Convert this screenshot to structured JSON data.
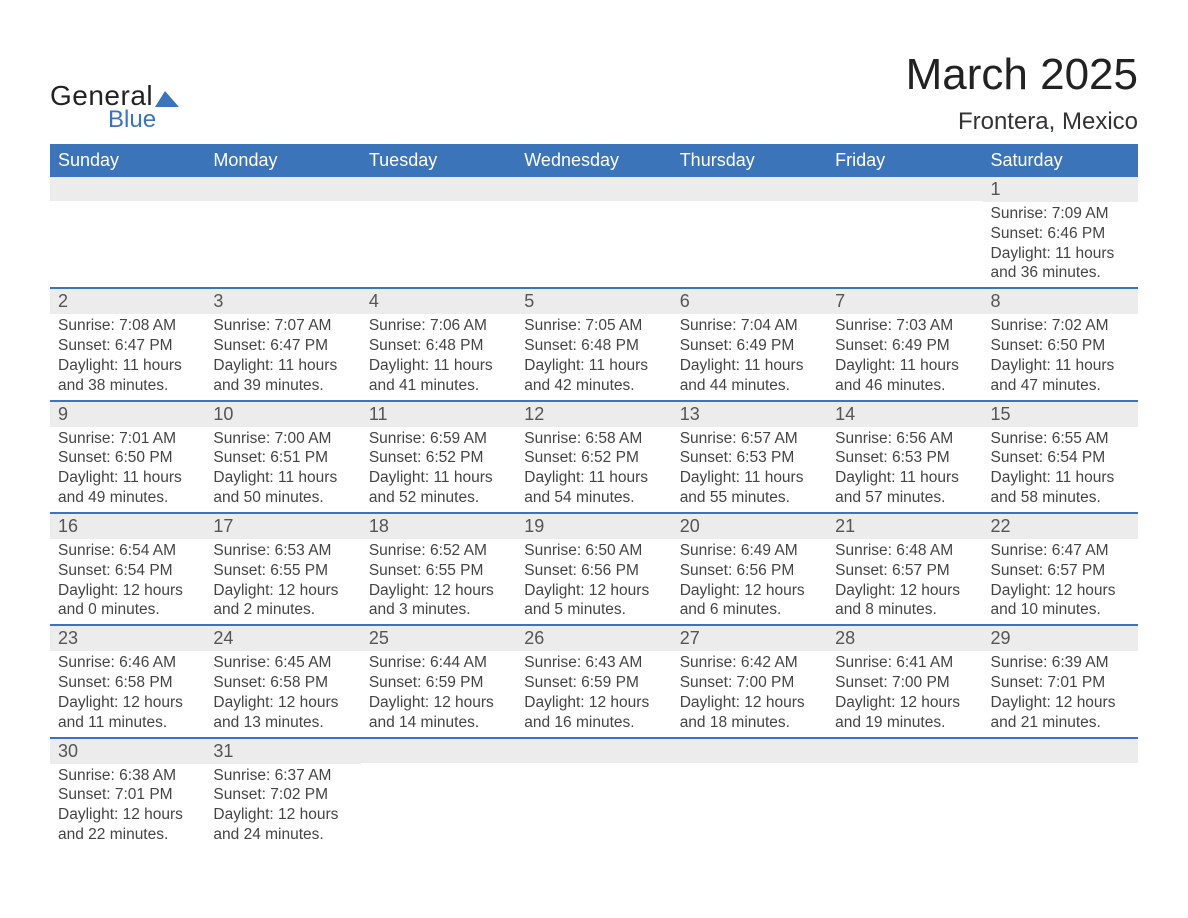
{
  "brand": {
    "line1": "General",
    "line2": "Blue",
    "accent_color": "#3b74b8"
  },
  "title": "March 2025",
  "location": "Frontera, Mexico",
  "header_bg": "#3b74b8",
  "daynum_bg": "#ececec",
  "border_color": "#3b74b8",
  "day_names": [
    "Sunday",
    "Monday",
    "Tuesday",
    "Wednesday",
    "Thursday",
    "Friday",
    "Saturday"
  ],
  "weeks": [
    [
      {
        "day": "",
        "sunrise": "",
        "sunset": "",
        "daylight1": "",
        "daylight2": ""
      },
      {
        "day": "",
        "sunrise": "",
        "sunset": "",
        "daylight1": "",
        "daylight2": ""
      },
      {
        "day": "",
        "sunrise": "",
        "sunset": "",
        "daylight1": "",
        "daylight2": ""
      },
      {
        "day": "",
        "sunrise": "",
        "sunset": "",
        "daylight1": "",
        "daylight2": ""
      },
      {
        "day": "",
        "sunrise": "",
        "sunset": "",
        "daylight1": "",
        "daylight2": ""
      },
      {
        "day": "",
        "sunrise": "",
        "sunset": "",
        "daylight1": "",
        "daylight2": ""
      },
      {
        "day": "1",
        "sunrise": "Sunrise: 7:09 AM",
        "sunset": "Sunset: 6:46 PM",
        "daylight1": "Daylight: 11 hours",
        "daylight2": "and 36 minutes."
      }
    ],
    [
      {
        "day": "2",
        "sunrise": "Sunrise: 7:08 AM",
        "sunset": "Sunset: 6:47 PM",
        "daylight1": "Daylight: 11 hours",
        "daylight2": "and 38 minutes."
      },
      {
        "day": "3",
        "sunrise": "Sunrise: 7:07 AM",
        "sunset": "Sunset: 6:47 PM",
        "daylight1": "Daylight: 11 hours",
        "daylight2": "and 39 minutes."
      },
      {
        "day": "4",
        "sunrise": "Sunrise: 7:06 AM",
        "sunset": "Sunset: 6:48 PM",
        "daylight1": "Daylight: 11 hours",
        "daylight2": "and 41 minutes."
      },
      {
        "day": "5",
        "sunrise": "Sunrise: 7:05 AM",
        "sunset": "Sunset: 6:48 PM",
        "daylight1": "Daylight: 11 hours",
        "daylight2": "and 42 minutes."
      },
      {
        "day": "6",
        "sunrise": "Sunrise: 7:04 AM",
        "sunset": "Sunset: 6:49 PM",
        "daylight1": "Daylight: 11 hours",
        "daylight2": "and 44 minutes."
      },
      {
        "day": "7",
        "sunrise": "Sunrise: 7:03 AM",
        "sunset": "Sunset: 6:49 PM",
        "daylight1": "Daylight: 11 hours",
        "daylight2": "and 46 minutes."
      },
      {
        "day": "8",
        "sunrise": "Sunrise: 7:02 AM",
        "sunset": "Sunset: 6:50 PM",
        "daylight1": "Daylight: 11 hours",
        "daylight2": "and 47 minutes."
      }
    ],
    [
      {
        "day": "9",
        "sunrise": "Sunrise: 7:01 AM",
        "sunset": "Sunset: 6:50 PM",
        "daylight1": "Daylight: 11 hours",
        "daylight2": "and 49 minutes."
      },
      {
        "day": "10",
        "sunrise": "Sunrise: 7:00 AM",
        "sunset": "Sunset: 6:51 PM",
        "daylight1": "Daylight: 11 hours",
        "daylight2": "and 50 minutes."
      },
      {
        "day": "11",
        "sunrise": "Sunrise: 6:59 AM",
        "sunset": "Sunset: 6:52 PM",
        "daylight1": "Daylight: 11 hours",
        "daylight2": "and 52 minutes."
      },
      {
        "day": "12",
        "sunrise": "Sunrise: 6:58 AM",
        "sunset": "Sunset: 6:52 PM",
        "daylight1": "Daylight: 11 hours",
        "daylight2": "and 54 minutes."
      },
      {
        "day": "13",
        "sunrise": "Sunrise: 6:57 AM",
        "sunset": "Sunset: 6:53 PM",
        "daylight1": "Daylight: 11 hours",
        "daylight2": "and 55 minutes."
      },
      {
        "day": "14",
        "sunrise": "Sunrise: 6:56 AM",
        "sunset": "Sunset: 6:53 PM",
        "daylight1": "Daylight: 11 hours",
        "daylight2": "and 57 minutes."
      },
      {
        "day": "15",
        "sunrise": "Sunrise: 6:55 AM",
        "sunset": "Sunset: 6:54 PM",
        "daylight1": "Daylight: 11 hours",
        "daylight2": "and 58 minutes."
      }
    ],
    [
      {
        "day": "16",
        "sunrise": "Sunrise: 6:54 AM",
        "sunset": "Sunset: 6:54 PM",
        "daylight1": "Daylight: 12 hours",
        "daylight2": "and 0 minutes."
      },
      {
        "day": "17",
        "sunrise": "Sunrise: 6:53 AM",
        "sunset": "Sunset: 6:55 PM",
        "daylight1": "Daylight: 12 hours",
        "daylight2": "and 2 minutes."
      },
      {
        "day": "18",
        "sunrise": "Sunrise: 6:52 AM",
        "sunset": "Sunset: 6:55 PM",
        "daylight1": "Daylight: 12 hours",
        "daylight2": "and 3 minutes."
      },
      {
        "day": "19",
        "sunrise": "Sunrise: 6:50 AM",
        "sunset": "Sunset: 6:56 PM",
        "daylight1": "Daylight: 12 hours",
        "daylight2": "and 5 minutes."
      },
      {
        "day": "20",
        "sunrise": "Sunrise: 6:49 AM",
        "sunset": "Sunset: 6:56 PM",
        "daylight1": "Daylight: 12 hours",
        "daylight2": "and 6 minutes."
      },
      {
        "day": "21",
        "sunrise": "Sunrise: 6:48 AM",
        "sunset": "Sunset: 6:57 PM",
        "daylight1": "Daylight: 12 hours",
        "daylight2": "and 8 minutes."
      },
      {
        "day": "22",
        "sunrise": "Sunrise: 6:47 AM",
        "sunset": "Sunset: 6:57 PM",
        "daylight1": "Daylight: 12 hours",
        "daylight2": "and 10 minutes."
      }
    ],
    [
      {
        "day": "23",
        "sunrise": "Sunrise: 6:46 AM",
        "sunset": "Sunset: 6:58 PM",
        "daylight1": "Daylight: 12 hours",
        "daylight2": "and 11 minutes."
      },
      {
        "day": "24",
        "sunrise": "Sunrise: 6:45 AM",
        "sunset": "Sunset: 6:58 PM",
        "daylight1": "Daylight: 12 hours",
        "daylight2": "and 13 minutes."
      },
      {
        "day": "25",
        "sunrise": "Sunrise: 6:44 AM",
        "sunset": "Sunset: 6:59 PM",
        "daylight1": "Daylight: 12 hours",
        "daylight2": "and 14 minutes."
      },
      {
        "day": "26",
        "sunrise": "Sunrise: 6:43 AM",
        "sunset": "Sunset: 6:59 PM",
        "daylight1": "Daylight: 12 hours",
        "daylight2": "and 16 minutes."
      },
      {
        "day": "27",
        "sunrise": "Sunrise: 6:42 AM",
        "sunset": "Sunset: 7:00 PM",
        "daylight1": "Daylight: 12 hours",
        "daylight2": "and 18 minutes."
      },
      {
        "day": "28",
        "sunrise": "Sunrise: 6:41 AM",
        "sunset": "Sunset: 7:00 PM",
        "daylight1": "Daylight: 12 hours",
        "daylight2": "and 19 minutes."
      },
      {
        "day": "29",
        "sunrise": "Sunrise: 6:39 AM",
        "sunset": "Sunset: 7:01 PM",
        "daylight1": "Daylight: 12 hours",
        "daylight2": "and 21 minutes."
      }
    ],
    [
      {
        "day": "30",
        "sunrise": "Sunrise: 6:38 AM",
        "sunset": "Sunset: 7:01 PM",
        "daylight1": "Daylight: 12 hours",
        "daylight2": "and 22 minutes."
      },
      {
        "day": "31",
        "sunrise": "Sunrise: 6:37 AM",
        "sunset": "Sunset: 7:02 PM",
        "daylight1": "Daylight: 12 hours",
        "daylight2": "and 24 minutes."
      },
      {
        "day": "",
        "sunrise": "",
        "sunset": "",
        "daylight1": "",
        "daylight2": ""
      },
      {
        "day": "",
        "sunrise": "",
        "sunset": "",
        "daylight1": "",
        "daylight2": ""
      },
      {
        "day": "",
        "sunrise": "",
        "sunset": "",
        "daylight1": "",
        "daylight2": ""
      },
      {
        "day": "",
        "sunrise": "",
        "sunset": "",
        "daylight1": "",
        "daylight2": ""
      },
      {
        "day": "",
        "sunrise": "",
        "sunset": "",
        "daylight1": "",
        "daylight2": ""
      }
    ]
  ]
}
